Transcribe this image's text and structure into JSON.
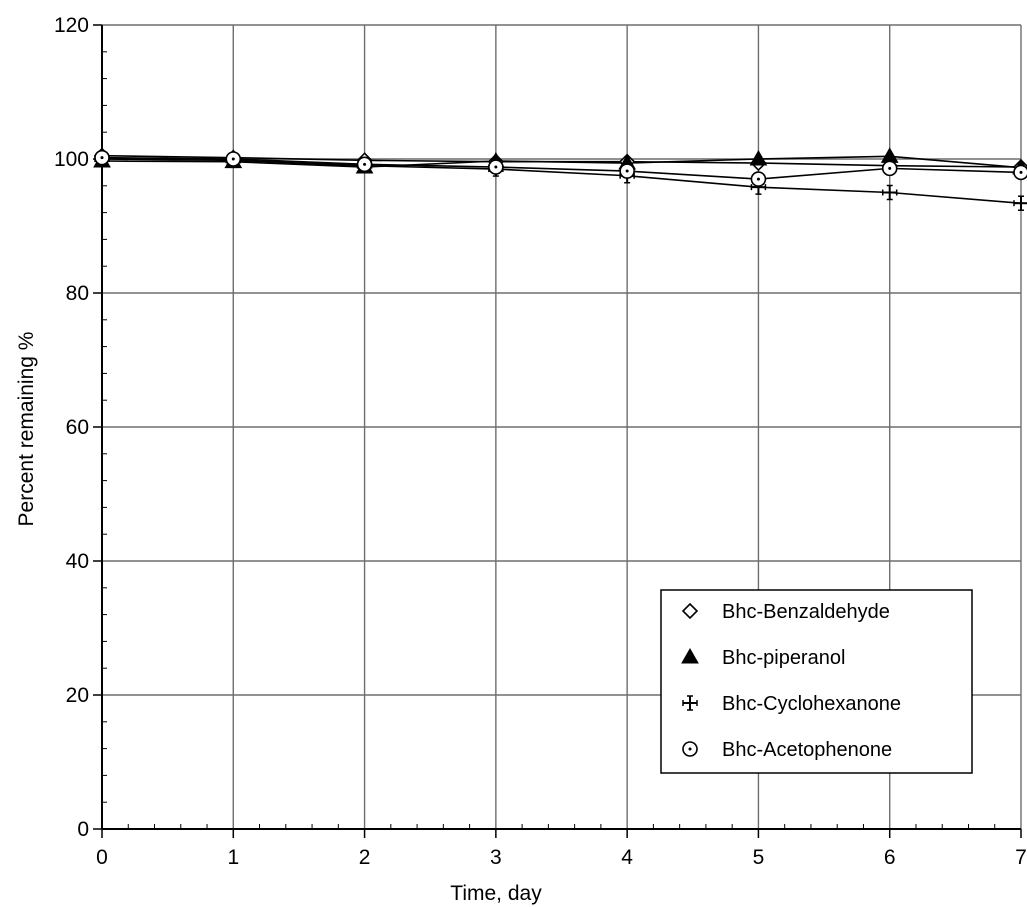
{
  "chart_data": {
    "type": "line",
    "title": "",
    "xlabel": "Time, day",
    "ylabel": "Percent remaining %",
    "xlim": [
      0,
      7
    ],
    "ylim": [
      0,
      120
    ],
    "x_ticks": [
      "0",
      "1",
      "2",
      "3",
      "4",
      "5",
      "6",
      "7"
    ],
    "y_ticks": [
      "0",
      "20",
      "40",
      "60",
      "80",
      "100",
      "120"
    ],
    "grid": true,
    "legend_position": "lower-right",
    "x": [
      0,
      1,
      2,
      3,
      4,
      5,
      6,
      7
    ],
    "series": [
      {
        "name": "Bhc-Benzaldehyde",
        "marker": "open-diamond",
        "values": [
          100.5,
          100.2,
          99.8,
          99.6,
          99.6,
          99.4,
          99.0,
          98.8
        ]
      },
      {
        "name": "Bhc-piperanol",
        "marker": "filled-triangle",
        "values": [
          99.7,
          99.6,
          98.8,
          99.7,
          99.4,
          100.0,
          100.4,
          98.7
        ]
      },
      {
        "name": "Bhc-Cyclohexanone",
        "marker": "cross",
        "values": [
          100.0,
          99.8,
          99.0,
          98.5,
          97.5,
          95.8,
          95.0,
          93.4
        ]
      },
      {
        "name": "Bhc-Acetophenone",
        "marker": "open-circle",
        "values": [
          100.2,
          100.0,
          99.2,
          98.8,
          98.2,
          97.0,
          98.6,
          98.0
        ]
      }
    ]
  }
}
